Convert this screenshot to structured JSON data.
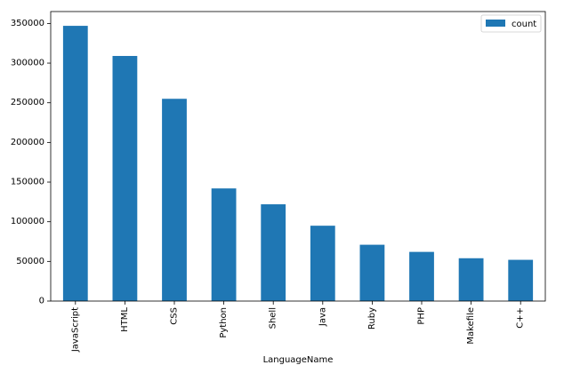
{
  "chart_data": {
    "type": "bar",
    "xlabel": "LanguageName",
    "ylabel": "",
    "ylim": [
      0,
      365000
    ],
    "yticks": [
      0,
      50000,
      100000,
      150000,
      200000,
      250000,
      300000,
      350000
    ],
    "ytick_labels": [
      "0",
      "50000",
      "100000",
      "150000",
      "200000",
      "250000",
      "300000",
      "350000"
    ],
    "categories": [
      "JavaScript",
      "HTML",
      "CSS",
      "Python",
      "Shell",
      "Java",
      "Ruby",
      "PHP",
      "Makefile",
      "C++"
    ],
    "series": [
      {
        "name": "count",
        "color": "#1f77b4",
        "values": [
          347000,
          309000,
          255000,
          142000,
          122000,
          95000,
          71000,
          62000,
          54000,
          52000
        ]
      }
    ],
    "legend": {
      "position": "top-right",
      "label": "count"
    },
    "grid": false
  }
}
